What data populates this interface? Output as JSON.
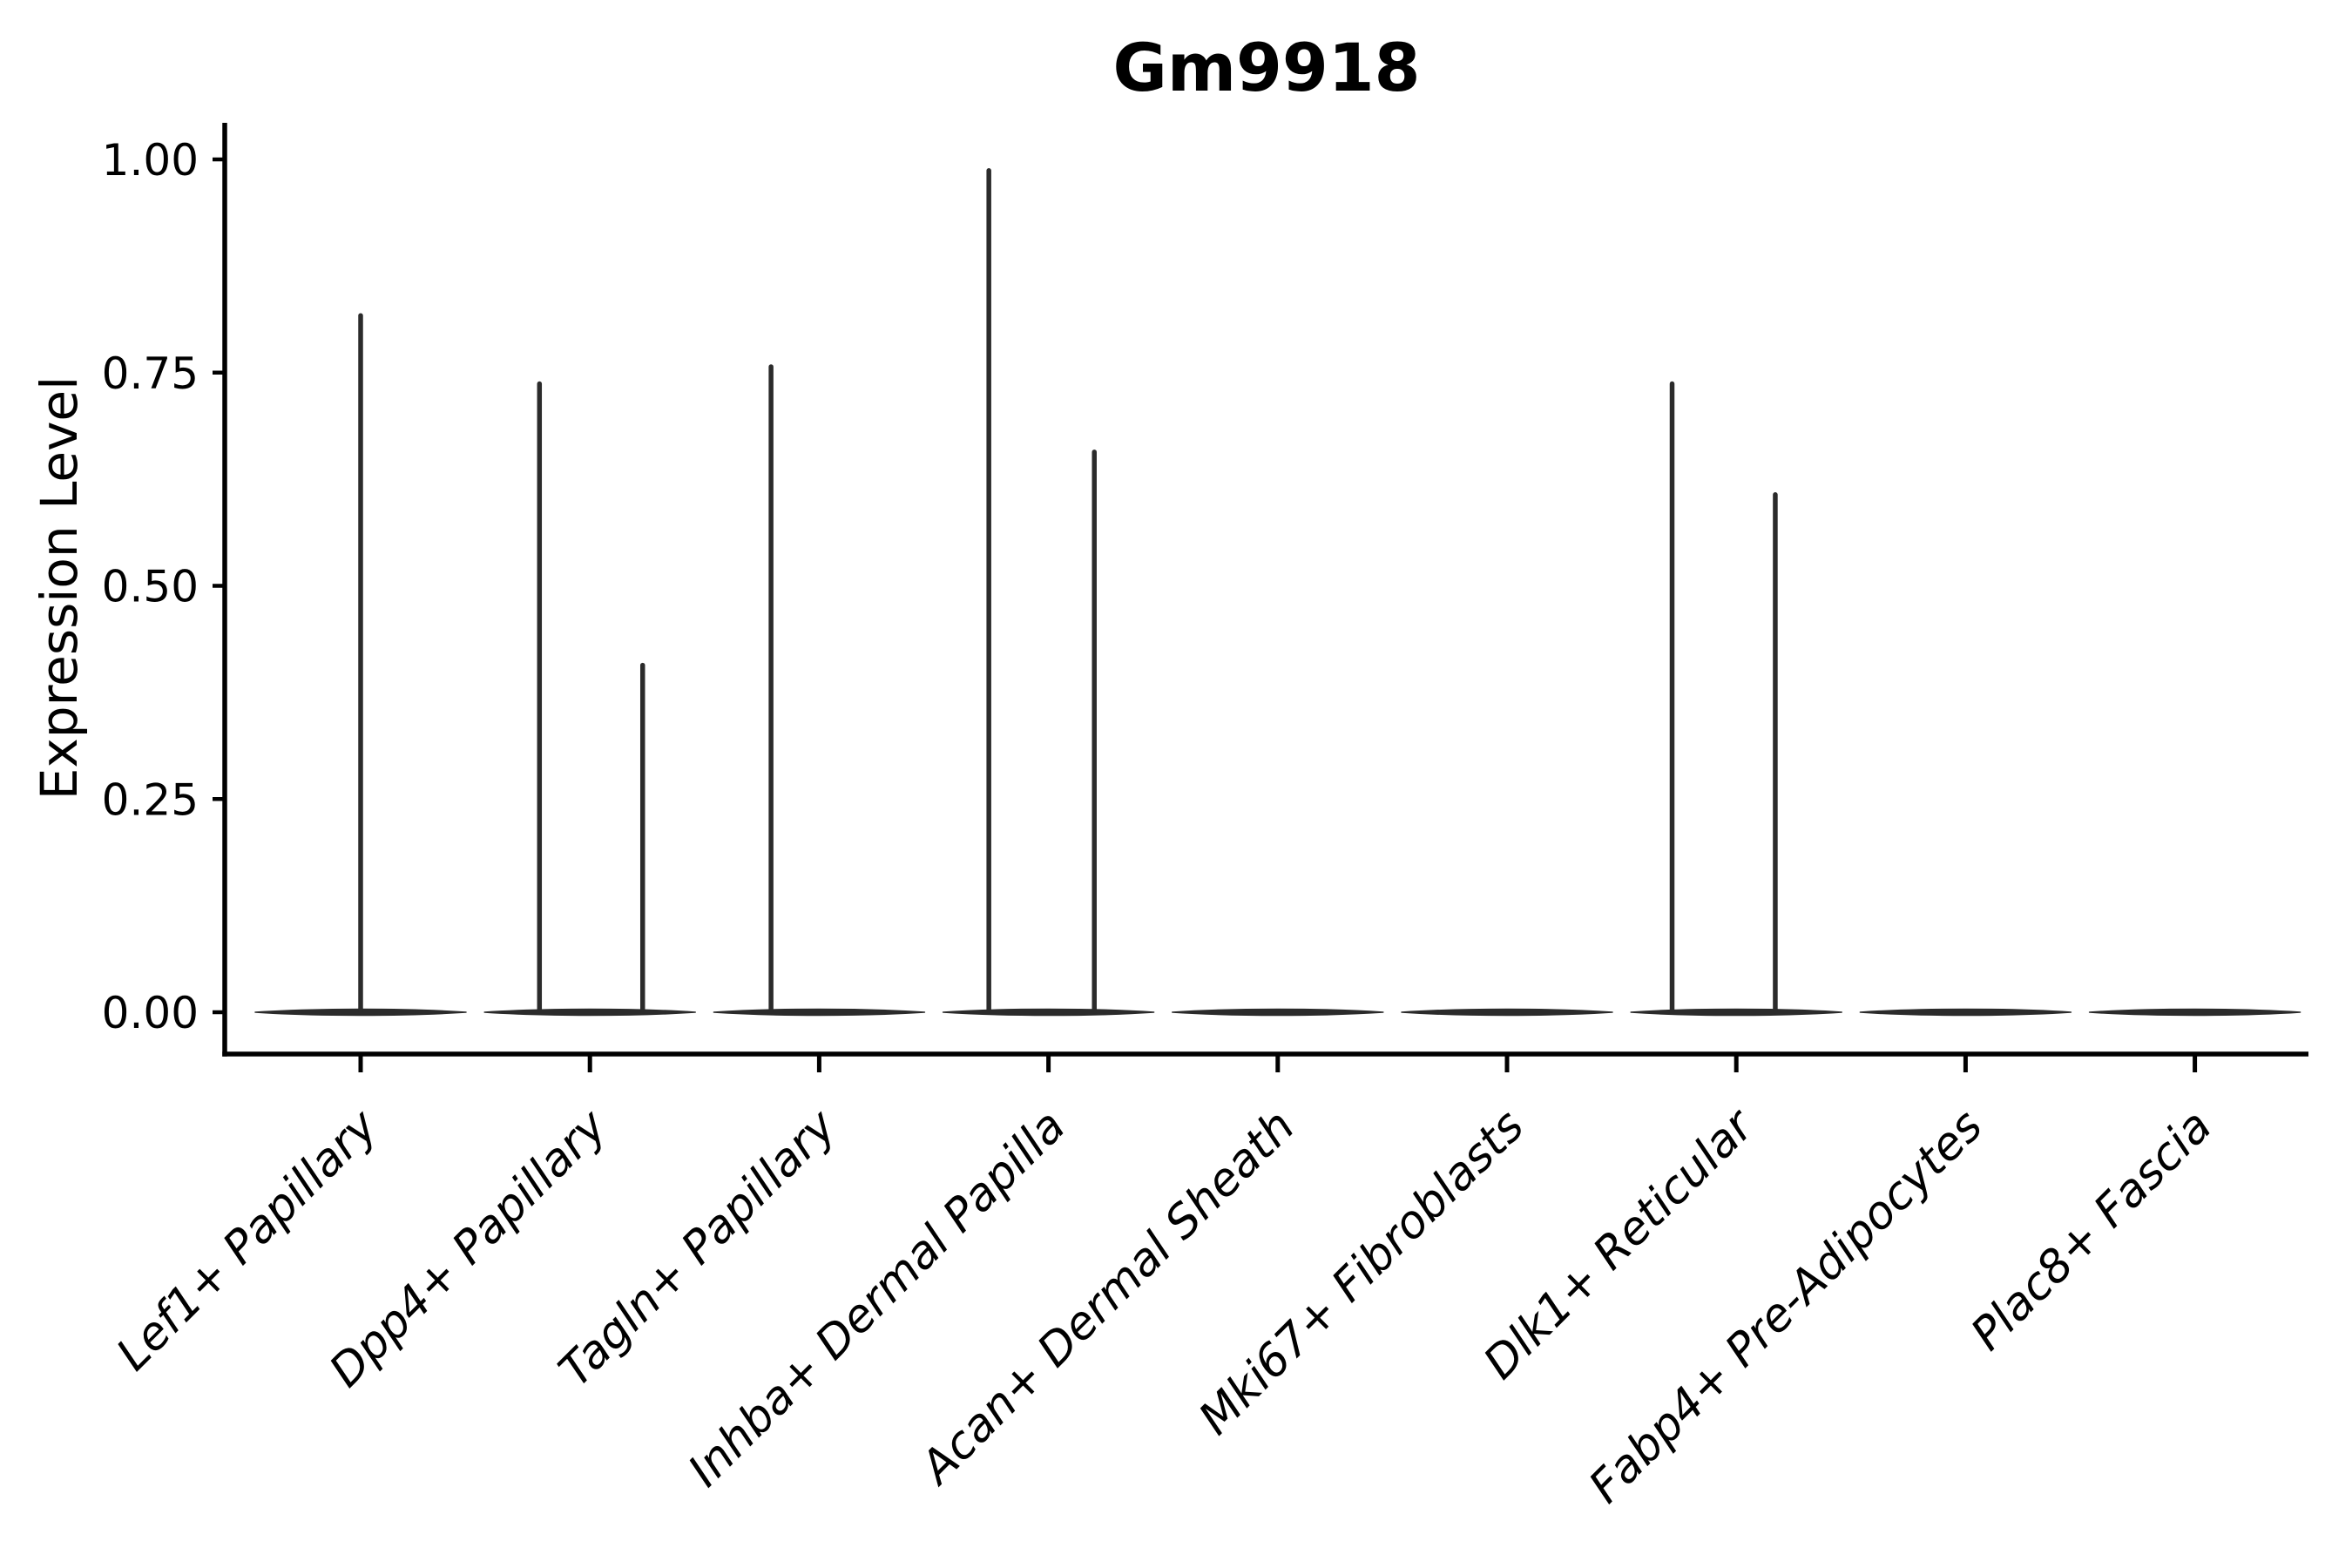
{
  "figure": {
    "background": "#ffffff"
  },
  "chart_data": {
    "type": "violin",
    "title": "Gm9918",
    "xlabel": "",
    "ylabel": "Expression Level",
    "categories": [
      "Lef1+ Papillary",
      "Dpp4+ Papillary",
      "Tagln+ Papillary",
      "Inhba+ Dermal Papilla",
      "Acan+ Dermal Sheath",
      "Mki67+ Fibroblasts",
      "Dlk1+ Reticular",
      "Fabp4+ Pre-Adipocytes",
      "Plac8+ Fascia"
    ],
    "y_ticks": [
      0,
      0.25,
      0.5,
      0.75,
      1.0
    ],
    "y_tick_labels": [
      "0.00",
      "0.25",
      "0.50",
      "0.75",
      "1.00"
    ],
    "ylim": [
      0,
      1.05
    ],
    "grid": false,
    "legend": "none",
    "colors": {
      "violin": "#2b2b2b",
      "axis": "#000000",
      "text": "#000000"
    },
    "violins": [
      {
        "category": "Lef1+ Papillary",
        "body_at_zero": true,
        "spikes": [
          {
            "offset_frac": 0.0,
            "max_expression": 0.82
          }
        ]
      },
      {
        "category": "Dpp4+ Papillary",
        "body_at_zero": true,
        "spikes": [
          {
            "offset_frac": -0.22,
            "max_expression": 0.74
          },
          {
            "offset_frac": 0.23,
            "max_expression": 0.41
          }
        ]
      },
      {
        "category": "Tagln+ Papillary",
        "body_at_zero": true,
        "spikes": [
          {
            "offset_frac": -0.21,
            "max_expression": 0.76
          }
        ]
      },
      {
        "category": "Inhba+ Dermal Papilla",
        "body_at_zero": true,
        "spikes": [
          {
            "offset_frac": -0.26,
            "max_expression": 0.99
          },
          {
            "offset_frac": 0.2,
            "max_expression": 0.66
          }
        ]
      },
      {
        "category": "Acan+ Dermal Sheath",
        "body_at_zero": true,
        "spikes": []
      },
      {
        "category": "Mki67+ Fibroblasts",
        "body_at_zero": true,
        "spikes": []
      },
      {
        "category": "Dlk1+ Reticular",
        "body_at_zero": true,
        "spikes": [
          {
            "offset_frac": -0.28,
            "max_expression": 0.74
          },
          {
            "offset_frac": 0.17,
            "max_expression": 0.61
          }
        ]
      },
      {
        "category": "Fabp4+ Pre-Adipocytes",
        "body_at_zero": true,
        "spikes": []
      },
      {
        "category": "Plac8+ Fascia",
        "body_at_zero": true,
        "spikes": []
      }
    ]
  }
}
